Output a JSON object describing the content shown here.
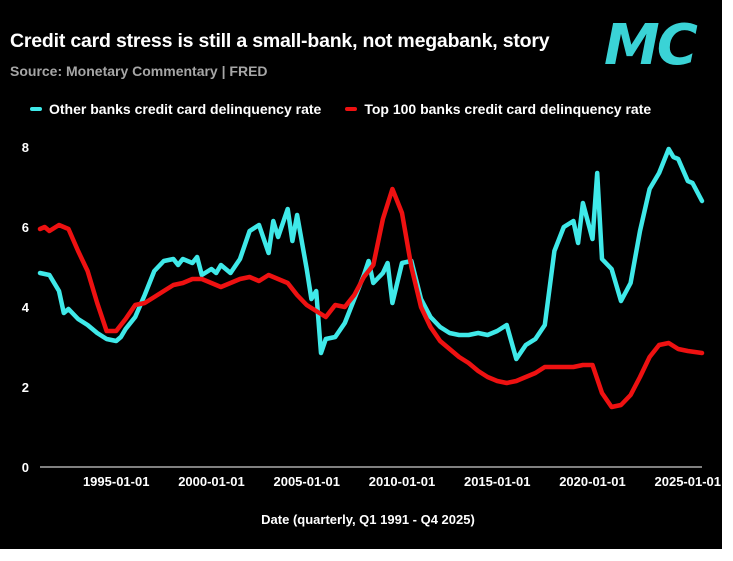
{
  "header": {
    "title": "Credit card stress is still a small-bank, not megabank, story",
    "source": "Source: Monetary Commentary | FRED",
    "logo_text": "MC"
  },
  "colors": {
    "background": "#000000",
    "logo": "#3ad3d6",
    "other_banks": "#3fe9e9",
    "top100_banks": "#ee1111",
    "text": "#ffffff",
    "muted_text": "#a6a6a6"
  },
  "chart_data": {
    "type": "line",
    "title": "Credit card stress is still a small-bank, not megabank, story",
    "subtitle": "Source: Monetary Commentary | FRED",
    "xlabel": "Date (quarterly, Q1 1991 - Q4 2025)",
    "ylabel": "",
    "xlim": [
      "1991-01-01",
      "2025-10-01"
    ],
    "ylim": [
      0,
      8
    ],
    "yticks": [
      0,
      2,
      4,
      6,
      8
    ],
    "xtick_labels": [
      "1995-01-01",
      "2000-01-01",
      "2005-01-01",
      "2010-01-01",
      "2015-01-01",
      "2020-01-01",
      "2025-01-01"
    ],
    "grid": false,
    "legend_position": "top",
    "series": [
      {
        "name": "Other banks credit card delinquency rate",
        "color": "#3fe9e9",
        "points": [
          [
            "1991-01-01",
            4.85
          ],
          [
            "1991-07-01",
            4.8
          ],
          [
            "1992-01-01",
            4.4
          ],
          [
            "1992-04-01",
            3.85
          ],
          [
            "1992-07-01",
            3.95
          ],
          [
            "1993-01-01",
            3.7
          ],
          [
            "1993-07-01",
            3.55
          ],
          [
            "1994-01-01",
            3.35
          ],
          [
            "1994-07-01",
            3.2
          ],
          [
            "1995-01-01",
            3.15
          ],
          [
            "1995-04-01",
            3.25
          ],
          [
            "1995-07-01",
            3.45
          ],
          [
            "1996-01-01",
            3.75
          ],
          [
            "1996-07-01",
            4.3
          ],
          [
            "1997-01-01",
            4.9
          ],
          [
            "1997-07-01",
            5.15
          ],
          [
            "1998-01-01",
            5.2
          ],
          [
            "1998-04-01",
            5.05
          ],
          [
            "1998-07-01",
            5.2
          ],
          [
            "1999-01-01",
            5.1
          ],
          [
            "1999-04-01",
            5.25
          ],
          [
            "1999-07-01",
            4.8
          ],
          [
            "2000-01-01",
            4.95
          ],
          [
            "2000-04-01",
            4.85
          ],
          [
            "2000-07-01",
            5.05
          ],
          [
            "2001-01-01",
            4.85
          ],
          [
            "2001-07-01",
            5.2
          ],
          [
            "2002-01-01",
            5.9
          ],
          [
            "2002-07-01",
            6.05
          ],
          [
            "2003-01-01",
            5.35
          ],
          [
            "2003-04-01",
            6.15
          ],
          [
            "2003-07-01",
            5.75
          ],
          [
            "2004-01-01",
            6.45
          ],
          [
            "2004-04-01",
            5.65
          ],
          [
            "2004-07-01",
            6.3
          ],
          [
            "2005-01-01",
            4.95
          ],
          [
            "2005-04-01",
            4.2
          ],
          [
            "2005-07-01",
            4.4
          ],
          [
            "2005-10-01",
            2.85
          ],
          [
            "2006-01-01",
            3.2
          ],
          [
            "2006-07-01",
            3.25
          ],
          [
            "2007-01-01",
            3.6
          ],
          [
            "2007-07-01",
            4.2
          ],
          [
            "2008-01-01",
            4.8
          ],
          [
            "2008-04-01",
            5.15
          ],
          [
            "2008-07-01",
            4.6
          ],
          [
            "2009-01-01",
            4.85
          ],
          [
            "2009-04-01",
            5.1
          ],
          [
            "2009-07-01",
            4.1
          ],
          [
            "2010-01-01",
            5.1
          ],
          [
            "2010-07-01",
            5.15
          ],
          [
            "2011-01-01",
            4.2
          ],
          [
            "2011-07-01",
            3.75
          ],
          [
            "2012-01-01",
            3.5
          ],
          [
            "2012-07-01",
            3.35
          ],
          [
            "2013-01-01",
            3.3
          ],
          [
            "2013-07-01",
            3.3
          ],
          [
            "2014-01-01",
            3.35
          ],
          [
            "2014-07-01",
            3.3
          ],
          [
            "2015-01-01",
            3.4
          ],
          [
            "2015-07-01",
            3.55
          ],
          [
            "2016-01-01",
            2.7
          ],
          [
            "2016-07-01",
            3.05
          ],
          [
            "2017-01-01",
            3.2
          ],
          [
            "2017-07-01",
            3.55
          ],
          [
            "2018-01-01",
            5.4
          ],
          [
            "2018-07-01",
            6.0
          ],
          [
            "2019-01-01",
            6.15
          ],
          [
            "2019-04-01",
            5.6
          ],
          [
            "2019-07-01",
            6.6
          ],
          [
            "2020-01-01",
            5.7
          ],
          [
            "2020-04-01",
            7.35
          ],
          [
            "2020-07-01",
            5.2
          ],
          [
            "2021-01-01",
            4.95
          ],
          [
            "2021-07-01",
            4.15
          ],
          [
            "2022-01-01",
            4.6
          ],
          [
            "2022-07-01",
            5.9
          ],
          [
            "2023-01-01",
            6.95
          ],
          [
            "2023-07-01",
            7.35
          ],
          [
            "2024-01-01",
            7.95
          ],
          [
            "2024-04-01",
            7.75
          ],
          [
            "2024-07-01",
            7.7
          ],
          [
            "2025-01-01",
            7.15
          ],
          [
            "2025-04-01",
            7.1
          ],
          [
            "2025-10-01",
            6.65
          ]
        ]
      },
      {
        "name": "Top 100 banks credit card delinquency rate",
        "color": "#ee1111",
        "points": [
          [
            "1991-01-01",
            5.95
          ],
          [
            "1991-04-01",
            6.0
          ],
          [
            "1991-07-01",
            5.9
          ],
          [
            "1992-01-01",
            6.05
          ],
          [
            "1992-07-01",
            5.95
          ],
          [
            "1993-01-01",
            5.4
          ],
          [
            "1993-07-01",
            4.9
          ],
          [
            "1994-01-01",
            4.1
          ],
          [
            "1994-07-01",
            3.4
          ],
          [
            "1995-01-01",
            3.4
          ],
          [
            "1995-07-01",
            3.7
          ],
          [
            "1996-01-01",
            4.05
          ],
          [
            "1996-07-01",
            4.1
          ],
          [
            "1997-01-01",
            4.25
          ],
          [
            "1997-07-01",
            4.4
          ],
          [
            "1998-01-01",
            4.55
          ],
          [
            "1998-07-01",
            4.6
          ],
          [
            "1999-01-01",
            4.7
          ],
          [
            "1999-07-01",
            4.7
          ],
          [
            "2000-01-01",
            4.6
          ],
          [
            "2000-07-01",
            4.5
          ],
          [
            "2001-01-01",
            4.6
          ],
          [
            "2001-07-01",
            4.7
          ],
          [
            "2002-01-01",
            4.75
          ],
          [
            "2002-07-01",
            4.65
          ],
          [
            "2003-01-01",
            4.8
          ],
          [
            "2003-07-01",
            4.7
          ],
          [
            "2004-01-01",
            4.6
          ],
          [
            "2004-07-01",
            4.3
          ],
          [
            "2005-01-01",
            4.05
          ],
          [
            "2005-07-01",
            3.9
          ],
          [
            "2006-01-01",
            3.75
          ],
          [
            "2006-07-01",
            4.05
          ],
          [
            "2007-01-01",
            4.0
          ],
          [
            "2007-07-01",
            4.3
          ],
          [
            "2008-01-01",
            4.75
          ],
          [
            "2008-07-01",
            5.05
          ],
          [
            "2009-01-01",
            6.2
          ],
          [
            "2009-07-01",
            6.95
          ],
          [
            "2010-01-01",
            6.35
          ],
          [
            "2010-07-01",
            5.0
          ],
          [
            "2011-01-01",
            4.0
          ],
          [
            "2011-07-01",
            3.5
          ],
          [
            "2012-01-01",
            3.15
          ],
          [
            "2012-07-01",
            2.95
          ],
          [
            "2013-01-01",
            2.75
          ],
          [
            "2013-07-01",
            2.6
          ],
          [
            "2014-01-01",
            2.4
          ],
          [
            "2014-07-01",
            2.25
          ],
          [
            "2015-01-01",
            2.15
          ],
          [
            "2015-07-01",
            2.1
          ],
          [
            "2016-01-01",
            2.15
          ],
          [
            "2016-07-01",
            2.25
          ],
          [
            "2017-01-01",
            2.35
          ],
          [
            "2017-07-01",
            2.5
          ],
          [
            "2018-01-01",
            2.5
          ],
          [
            "2018-07-01",
            2.5
          ],
          [
            "2019-01-01",
            2.5
          ],
          [
            "2019-07-01",
            2.55
          ],
          [
            "2020-01-01",
            2.55
          ],
          [
            "2020-07-01",
            1.85
          ],
          [
            "2021-01-01",
            1.5
          ],
          [
            "2021-07-01",
            1.55
          ],
          [
            "2022-01-01",
            1.8
          ],
          [
            "2022-07-01",
            2.25
          ],
          [
            "2023-01-01",
            2.75
          ],
          [
            "2023-07-01",
            3.05
          ],
          [
            "2024-01-01",
            3.1
          ],
          [
            "2024-07-01",
            2.95
          ],
          [
            "2025-01-01",
            2.9
          ],
          [
            "2025-10-01",
            2.85
          ]
        ]
      }
    ]
  }
}
